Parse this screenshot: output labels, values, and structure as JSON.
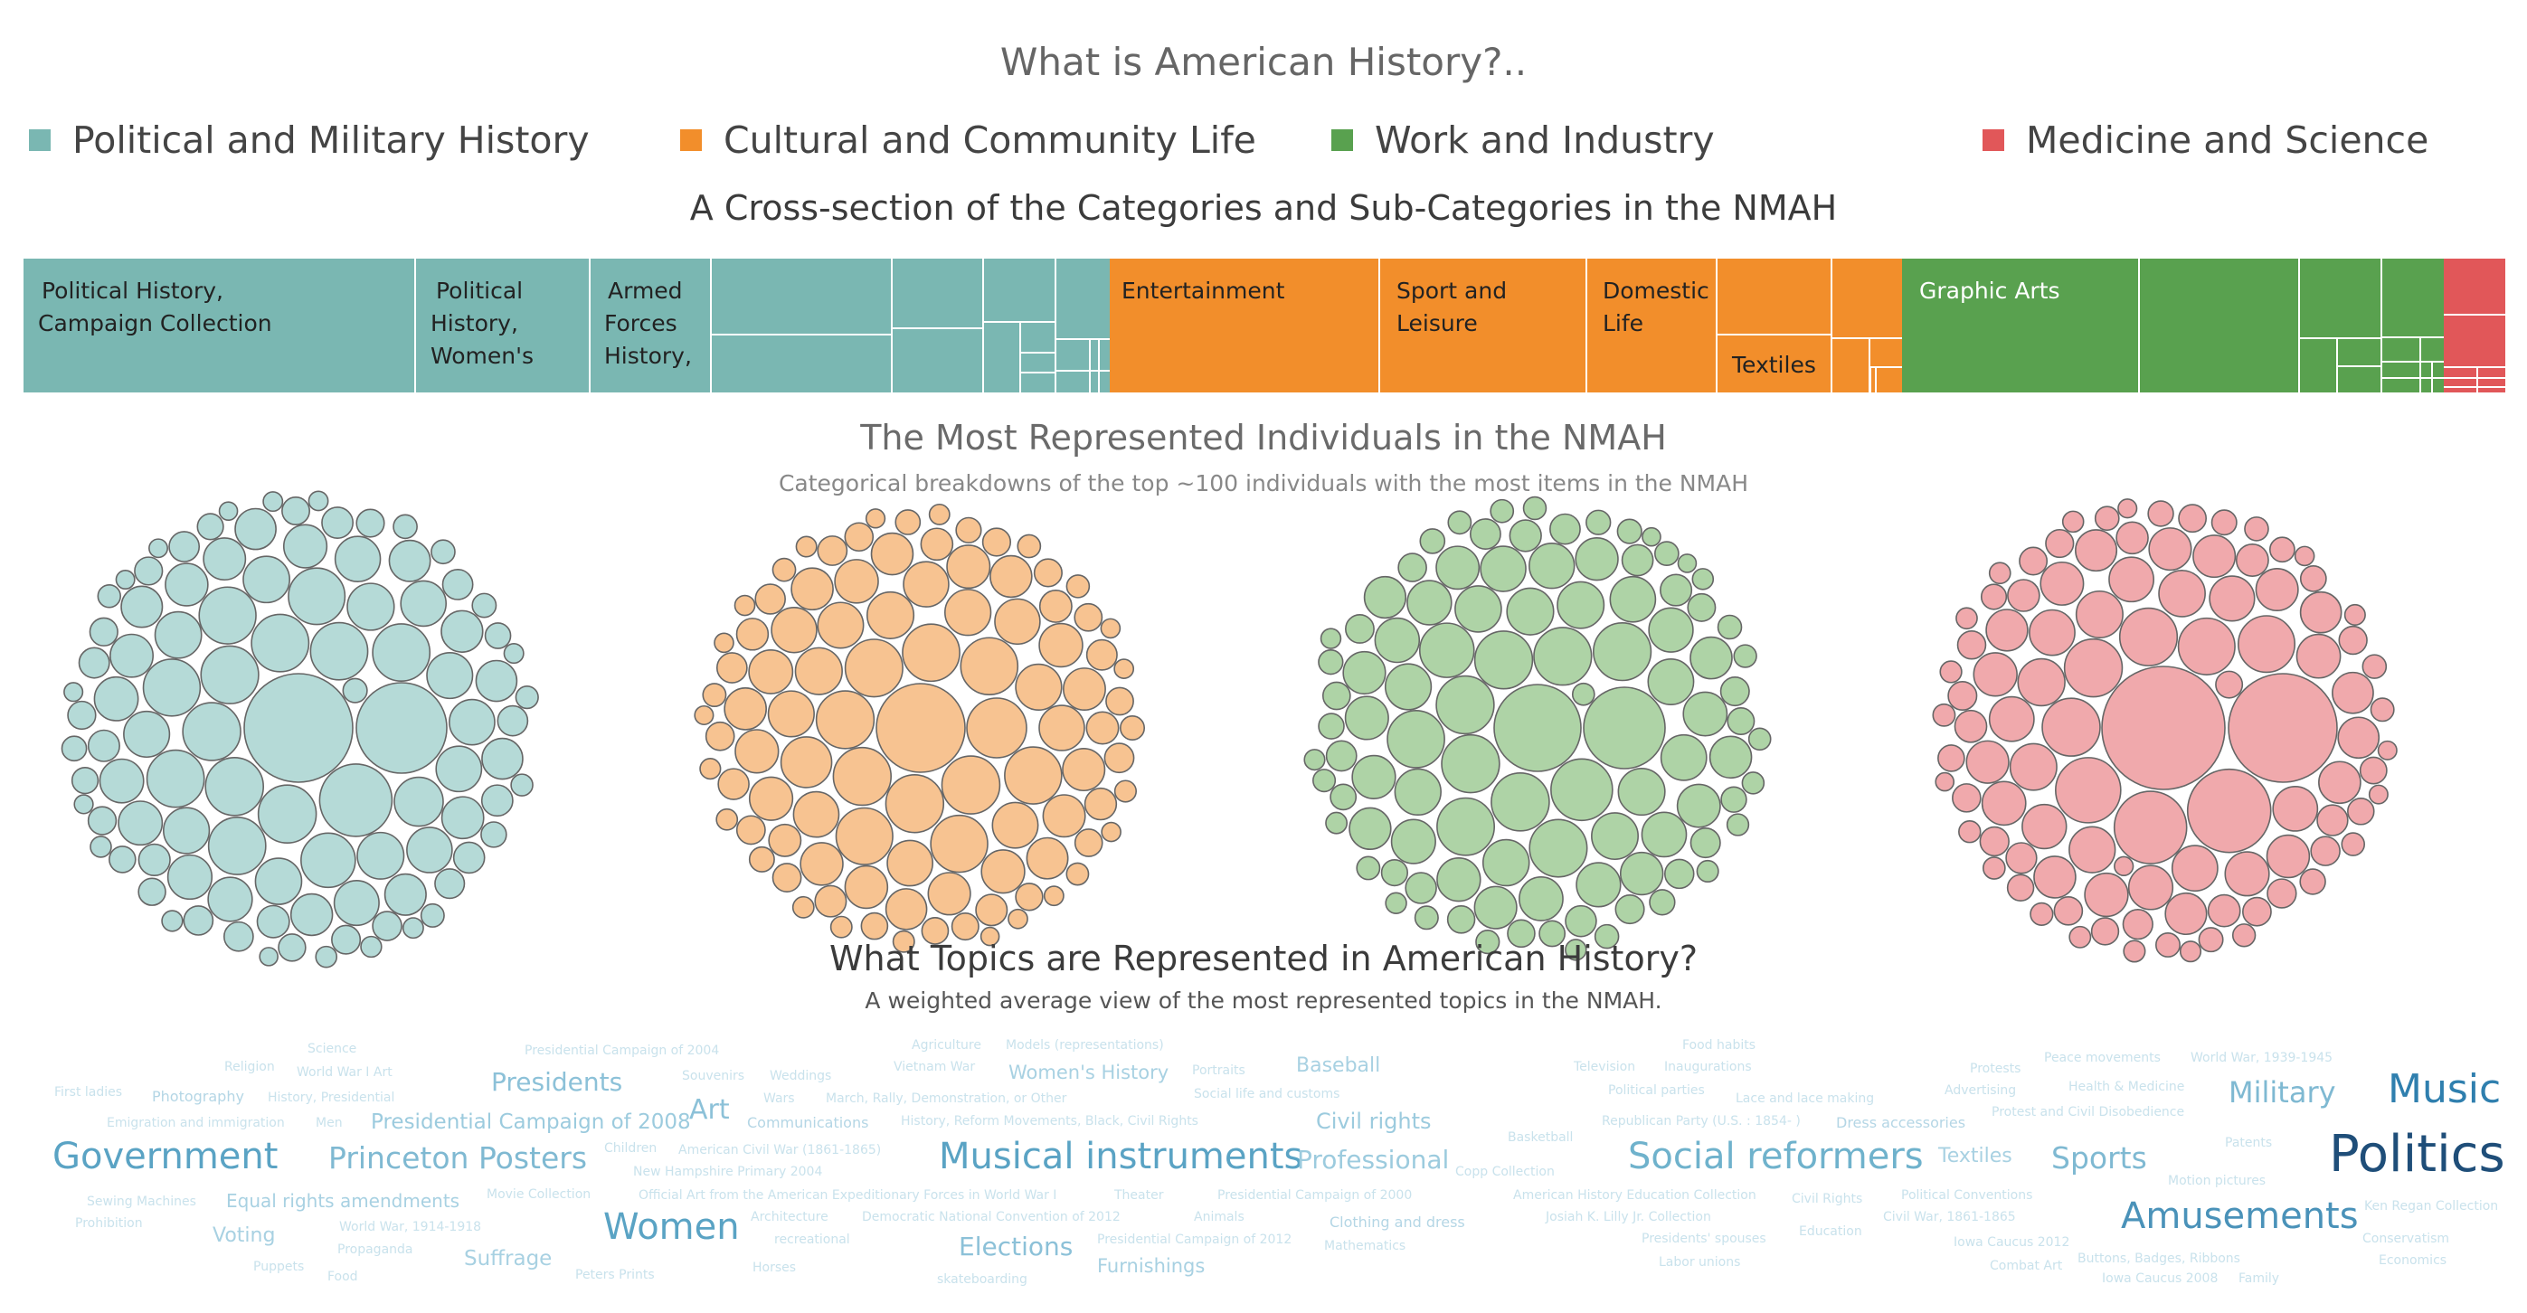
{
  "title": "What is American History?..",
  "legend": [
    {
      "label": "Political and Military History",
      "color": "#7ab7b2"
    },
    {
      "label": "Cultural and Community Life",
      "color": "#f28e2b"
    },
    {
      "label": "Work and Industry",
      "color": "#59a14f"
    },
    {
      "label": "Medicine and Science",
      "color": "#e15759"
    }
  ],
  "treemap_title": "A Cross-section of the Categories and Sub-Categories in the NMAH",
  "people_title": "The Most Represented Individuals in the NMAH",
  "people_subtitle": "Categorical breakdowns of the top ~100 individuals with the most items in the NMAH",
  "topics_title": "What Topics are Represented in American History?",
  "topics_subtitle": "A weighted average view of the most represented topics in the NMAH.",
  "chart_data": [
    {
      "type": "treemap",
      "title": "A Cross-section of the Categories and Sub-Categories in the NMAH",
      "categories": [
        {
          "name": "Political and Military History",
          "labels": [
            "Political History, Campaign Collection",
            "Political History, Women's",
            "Armed Forces History,"
          ]
        },
        {
          "name": "Cultural and Community Life",
          "labels": [
            "Entertainment",
            "Sport and Leisure",
            "Domestic Life",
            "Textiles"
          ]
        },
        {
          "name": "Work and Industry",
          "labels": [
            "Graphic Arts"
          ]
        },
        {
          "name": "Medicine and Science",
          "labels": []
        }
      ]
    },
    {
      "type": "packed-bubble",
      "title": "The Most Represented Individuals in the NMAH",
      "series": [
        {
          "name": "Political and Military History",
          "color": "#b5dad7"
        },
        {
          "name": "Cultural and Community Life",
          "color": "#f7c391"
        },
        {
          "name": "Work and Industry",
          "color": "#aed3a6"
        },
        {
          "name": "Medicine and Science",
          "color": "#f0a9ac"
        }
      ]
    },
    {
      "type": "word-cloud",
      "title": "What Topics are Represented in American History?",
      "words": [
        {
          "text": "Politics",
          "w": 10
        },
        {
          "text": "Music",
          "w": 8
        },
        {
          "text": "Amusements",
          "w": 7
        },
        {
          "text": "Musical instruments",
          "w": 7
        },
        {
          "text": "Government",
          "w": 7
        },
        {
          "text": "Women",
          "w": 7
        },
        {
          "text": "Social reformers",
          "w": 7
        },
        {
          "text": "Princeton Posters",
          "w": 6
        },
        {
          "text": "Military",
          "w": 6
        },
        {
          "text": "Sports",
          "w": 6
        },
        {
          "text": "Professional",
          "w": 5
        },
        {
          "text": "Presidents",
          "w": 5
        },
        {
          "text": "Elections",
          "w": 5
        },
        {
          "text": "Art",
          "w": 5
        },
        {
          "text": "Presidential Campaign of 2008",
          "w": 4
        },
        {
          "text": "Civil rights",
          "w": 4
        },
        {
          "text": "Baseball",
          "w": 4
        },
        {
          "text": "Women's History",
          "w": 4
        },
        {
          "text": "Voting",
          "w": 4
        },
        {
          "text": "Suffrage",
          "w": 4
        },
        {
          "text": "Furnishings",
          "w": 4
        },
        {
          "text": "Textiles",
          "w": 4
        },
        {
          "text": "Equal rights amendments",
          "w": 3
        },
        {
          "text": "Photography",
          "w": 3
        },
        {
          "text": "Communications",
          "w": 3
        },
        {
          "text": "Clothing and dress",
          "w": 3
        },
        {
          "text": "Dress accessories",
          "w": 3
        },
        {
          "text": "Science",
          "w": 1
        },
        {
          "text": "Religion",
          "w": 1
        },
        {
          "text": "World War I Art",
          "w": 1
        },
        {
          "text": "First ladies",
          "w": 1
        },
        {
          "text": "History, Presidential",
          "w": 1
        },
        {
          "text": "Emigration and immigration",
          "w": 1
        },
        {
          "text": "Men",
          "w": 1
        },
        {
          "text": "Presidential Campaign of 2004",
          "w": 1
        },
        {
          "text": "Souvenirs",
          "w": 1
        },
        {
          "text": "Weddings",
          "w": 1
        },
        {
          "text": "Wars",
          "w": 1
        },
        {
          "text": "March, Rally, Demonstration, or Other",
          "w": 1
        },
        {
          "text": "Agriculture",
          "w": 1
        },
        {
          "text": "Vietnam War",
          "w": 1
        },
        {
          "text": "Models (representations)",
          "w": 1
        },
        {
          "text": "Portraits",
          "w": 1
        },
        {
          "text": "Social life and customs",
          "w": 1
        },
        {
          "text": "History, Reform Movements, Black, Civil Rights",
          "w": 1
        },
        {
          "text": "Children",
          "w": 1
        },
        {
          "text": "American Civil War (1861-1865)",
          "w": 1
        },
        {
          "text": "New Hampshire Primary 2004",
          "w": 1
        },
        {
          "text": "Sewing Machines",
          "w": 1
        },
        {
          "text": "Prohibition",
          "w": 1
        },
        {
          "text": "Movie Collection",
          "w": 1
        },
        {
          "text": "World War, 1914-1918",
          "w": 1
        },
        {
          "text": "Propaganda",
          "w": 1
        },
        {
          "text": "Puppets",
          "w": 1
        },
        {
          "text": "Food",
          "w": 1
        },
        {
          "text": "Peters Prints",
          "w": 1
        },
        {
          "text": "Official Art from the American Expeditionary Forces in World War I",
          "w": 1
        },
        {
          "text": "Architecture",
          "w": 1
        },
        {
          "text": "Democratic National Convention of 2012",
          "w": 1
        },
        {
          "text": "recreational",
          "w": 1
        },
        {
          "text": "Horses",
          "w": 1
        },
        {
          "text": "skateboarding",
          "w": 1
        },
        {
          "text": "Theater",
          "w": 1
        },
        {
          "text": "Presidential Campaign of 2000",
          "w": 1
        },
        {
          "text": "Animals",
          "w": 1
        },
        {
          "text": "Presidential Campaign of 2012",
          "w": 1
        },
        {
          "text": "Mathematics",
          "w": 1
        },
        {
          "text": "Basketball",
          "w": 1
        },
        {
          "text": "Copp Collection",
          "w": 1
        },
        {
          "text": "Television",
          "w": 1
        },
        {
          "text": "Food habits",
          "w": 1
        },
        {
          "text": "Inaugurations",
          "w": 1
        },
        {
          "text": "Political parties",
          "w": 1
        },
        {
          "text": "Lace and lace making",
          "w": 1
        },
        {
          "text": "Republican Party (U.S. : 1854- )",
          "w": 1
        },
        {
          "text": "American History Education Collection",
          "w": 1
        },
        {
          "text": "Civil Rights",
          "w": 1
        },
        {
          "text": "Josiah K. Lilly Jr. Collection",
          "w": 1
        },
        {
          "text": "Presidents' spouses",
          "w": 1
        },
        {
          "text": "Education",
          "w": 1
        },
        {
          "text": "Labor unions",
          "w": 1
        },
        {
          "text": "Protests",
          "w": 1
        },
        {
          "text": "Peace movements",
          "w": 1
        },
        {
          "text": "World War, 1939-1945",
          "w": 1
        },
        {
          "text": "Advertising",
          "w": 1
        },
        {
          "text": "Health & Medicine",
          "w": 1
        },
        {
          "text": "Protest and Civil Disobedience",
          "w": 1
        },
        {
          "text": "Patents",
          "w": 1
        },
        {
          "text": "Political Conventions",
          "w": 1
        },
        {
          "text": "Civil War, 1861-1865",
          "w": 1
        },
        {
          "text": "Motion pictures",
          "w": 1
        },
        {
          "text": "Iowa Caucus 2012",
          "w": 1
        },
        {
          "text": "Combat Art",
          "w": 1
        },
        {
          "text": "Buttons, Badges, Ribbons",
          "w": 1
        },
        {
          "text": "Iowa Caucus 2008",
          "w": 1
        },
        {
          "text": "Family",
          "w": 1
        },
        {
          "text": "Ken Regan Collection",
          "w": 1
        },
        {
          "text": "Conservatism",
          "w": 1
        },
        {
          "text": "Economics",
          "w": 1
        }
      ]
    }
  ]
}
